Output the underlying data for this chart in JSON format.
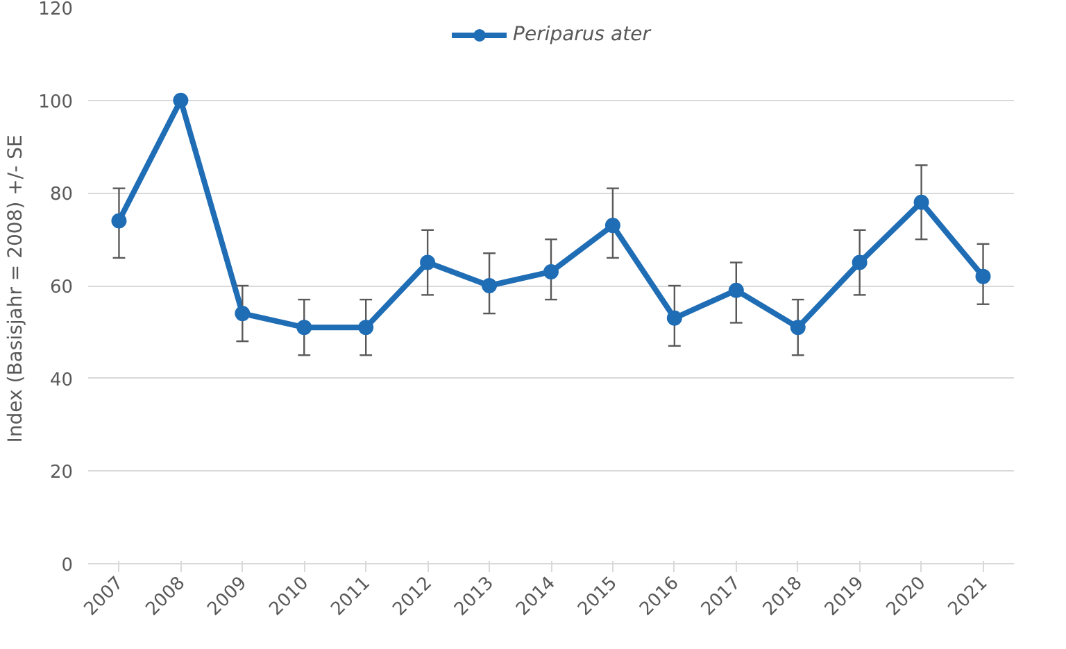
{
  "chart_data": {
    "type": "line",
    "ylabel": "Index (Basisjahr  = 2008) +/- SE",
    "categories": [
      "2007",
      "2008",
      "2009",
      "2010",
      "2011",
      "2012",
      "2013",
      "2014",
      "2015",
      "2016",
      "2017",
      "2018",
      "2019",
      "2020",
      "2021"
    ],
    "series": [
      {
        "name": "Periparus ater",
        "color": "#1f6db5",
        "values": [
          74,
          100,
          54,
          51,
          51,
          65,
          60,
          63,
          73,
          53,
          59,
          51,
          65,
          78,
          62
        ],
        "errors": [
          [
            66,
            81
          ],
          null,
          [
            48,
            60
          ],
          [
            45,
            57
          ],
          [
            45,
            57
          ],
          [
            58,
            72
          ],
          [
            54,
            67
          ],
          [
            57,
            70
          ],
          [
            66,
            81
          ],
          [
            47,
            60
          ],
          [
            52,
            65
          ],
          [
            45,
            57
          ],
          [
            58,
            72
          ],
          [
            70,
            86
          ],
          [
            56,
            69
          ]
        ]
      }
    ],
    "ylim": [
      0,
      120
    ],
    "yticks": [
      0,
      20,
      40,
      60,
      80,
      100,
      120
    ],
    "grid": "y",
    "legend": "top",
    "marker": "circle",
    "line_style": "solid"
  }
}
